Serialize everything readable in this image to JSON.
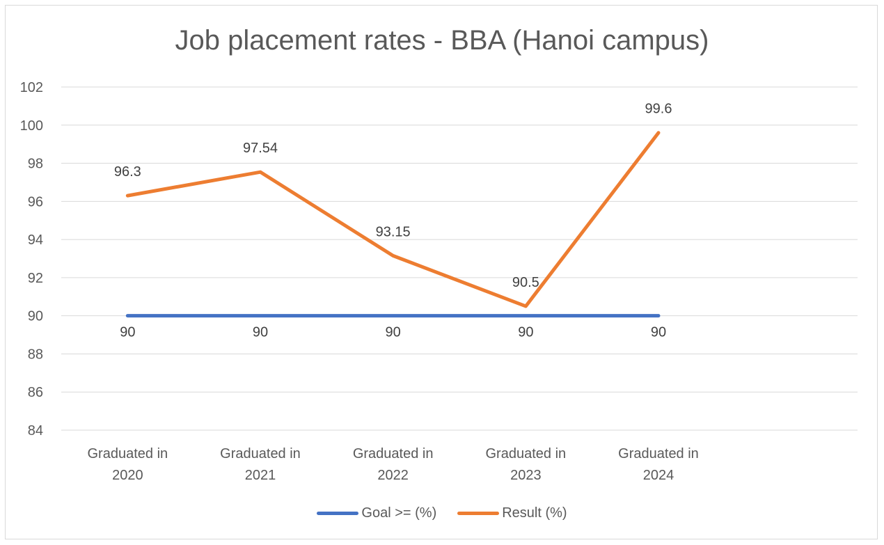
{
  "chart_data": {
    "type": "line",
    "title": "Job placement rates - BBA (Hanoi campus)",
    "categories": [
      [
        "Graduated in",
        "2020"
      ],
      [
        "Graduated in",
        "2021"
      ],
      [
        "Graduated in",
        "2022"
      ],
      [
        "Graduated in",
        "2023"
      ],
      [
        "Graduated in",
        "2024"
      ]
    ],
    "series": [
      {
        "name": "Goal >= (%)",
        "values": [
          90,
          90,
          90,
          90,
          90
        ],
        "color": "#4472c4"
      },
      {
        "name": "Result (%)",
        "values": [
          96.3,
          97.54,
          93.15,
          90.5,
          99.6
        ],
        "color": "#ed7d31"
      }
    ],
    "ylim": [
      84,
      102
    ],
    "yticks": [
      84,
      86,
      88,
      90,
      92,
      94,
      96,
      98,
      100,
      102
    ],
    "grid": true,
    "legend_position": "bottom",
    "xlabel": "",
    "ylabel": ""
  }
}
